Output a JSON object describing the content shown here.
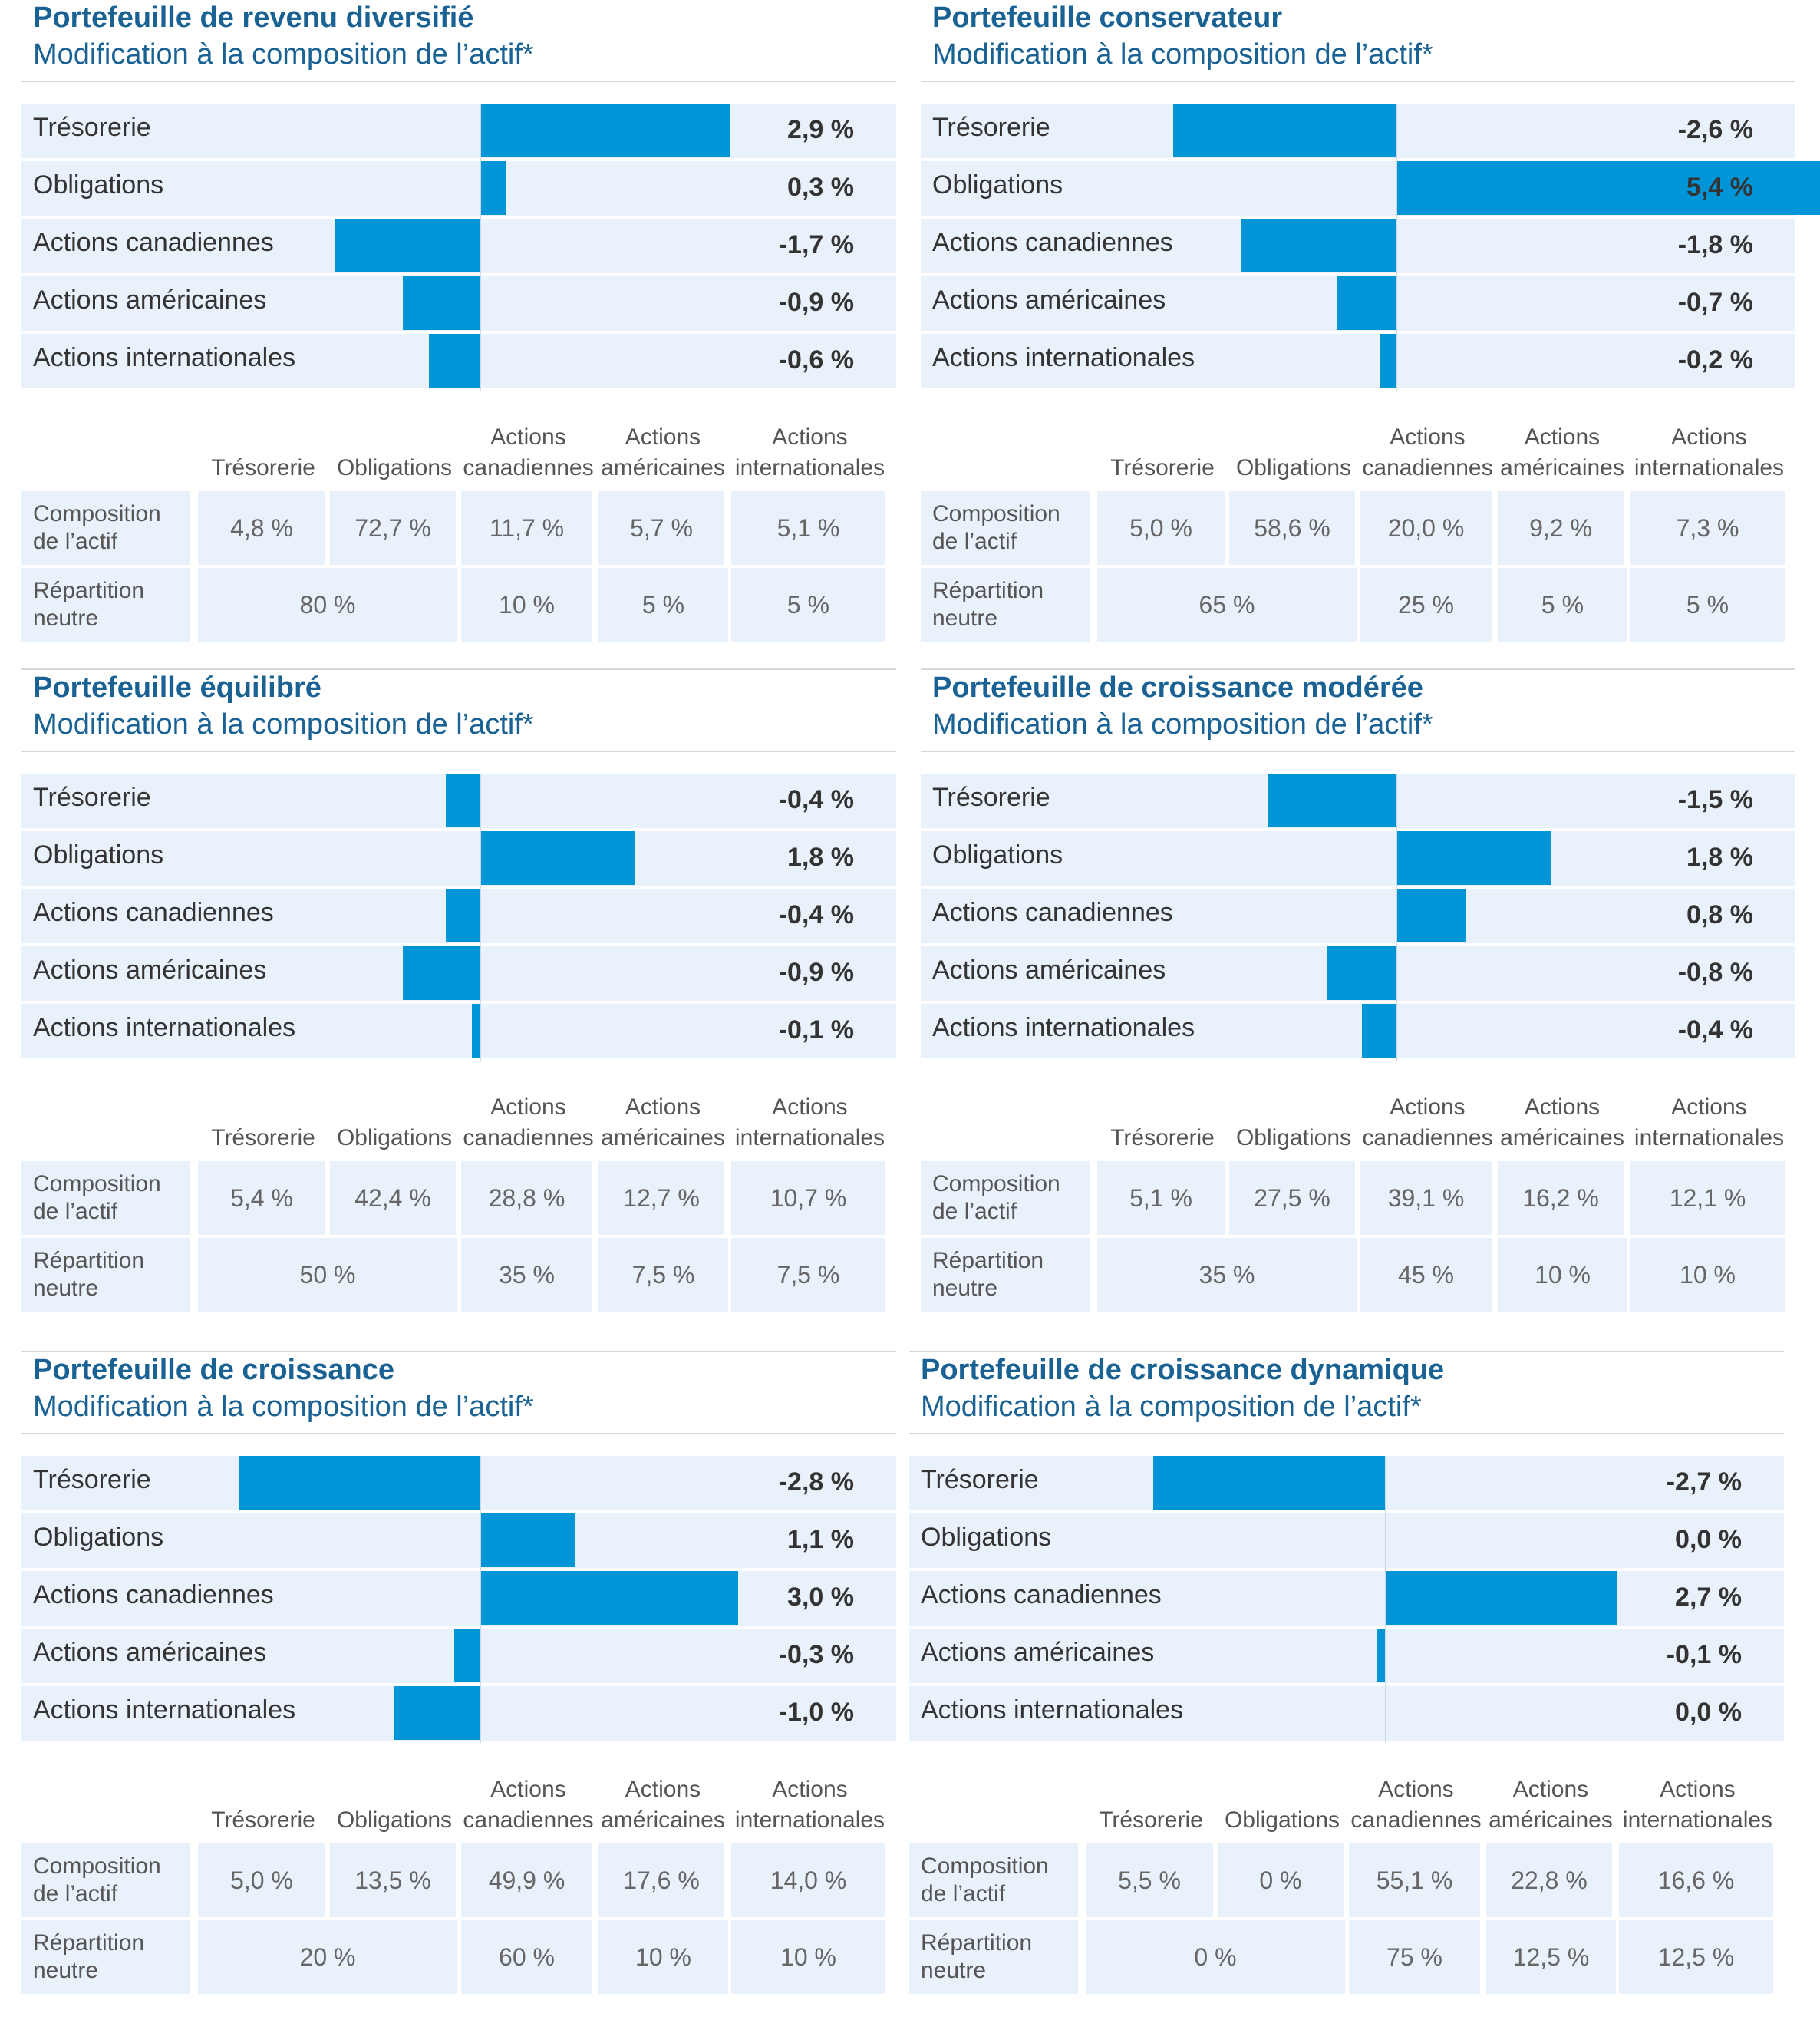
{
  "chart_data": [
    {
      "type": "bar",
      "title": "Portefeuille de revenu diversifié",
      "subtitle": "Modification à la composition de l’actif*",
      "categories": [
        "Trésorerie",
        "Obligations",
        "Actions canadiennes",
        "Actions américaines",
        "Actions internationales"
      ],
      "values": [
        2.9,
        0.3,
        -1.7,
        -0.9,
        -0.6
      ],
      "value_labels": [
        "2,9 %",
        "0,3 %",
        "-1,7 %",
        "-0,9 %",
        "-0,6 %"
      ],
      "table": {
        "columns": [
          "Trésorerie",
          "Obligations",
          "Actions canadiennes",
          "Actions américaines",
          "Actions internationales"
        ],
        "composition_label": "Composition de l’actif",
        "composition": [
          "4,8 %",
          "72,7 %",
          "11,7 %",
          "5,7 %",
          "5,1 %"
        ],
        "neutral_label": "Répartition neutre",
        "neutral": [
          "80 %",
          "10 %",
          "5 %",
          "5 %"
        ]
      }
    },
    {
      "type": "bar",
      "title": "Portefeuille conservateur",
      "subtitle": "Modification à la composition de l’actif*",
      "categories": [
        "Trésorerie",
        "Obligations",
        "Actions canadiennes",
        "Actions américaines",
        "Actions internationales"
      ],
      "values": [
        -2.6,
        5.4,
        -1.8,
        -0.7,
        -0.2
      ],
      "value_labels": [
        "-2,6 %",
        "5,4 %",
        "-1,8 %",
        "-0,7 %",
        "-0,2 %"
      ],
      "table": {
        "columns": [
          "Trésorerie",
          "Obligations",
          "Actions canadiennes",
          "Actions américaines",
          "Actions internationales"
        ],
        "composition_label": "Composition de l’actif",
        "composition": [
          "5,0 %",
          "58,6 %",
          "20,0 %",
          "9,2 %",
          "7,3 %"
        ],
        "neutral_label": "Répartition neutre",
        "neutral": [
          "65 %",
          "25 %",
          "5 %",
          "5 %"
        ]
      }
    },
    {
      "type": "bar",
      "title": "Portefeuille équilibré",
      "subtitle": "Modification à la composition de l’actif*",
      "categories": [
        "Trésorerie",
        "Obligations",
        "Actions canadiennes",
        "Actions américaines",
        "Actions internationales"
      ],
      "values": [
        -0.4,
        1.8,
        -0.4,
        -0.9,
        -0.1
      ],
      "value_labels": [
        "-0,4 %",
        "1,8 %",
        "-0,4 %",
        "-0,9 %",
        "-0,1 %"
      ],
      "table": {
        "columns": [
          "Trésorerie",
          "Obligations",
          "Actions canadiennes",
          "Actions américaines",
          "Actions internationales"
        ],
        "composition_label": "Composition de l’actif",
        "composition": [
          "5,4 %",
          "42,4 %",
          "28,8 %",
          "12,7 %",
          "10,7 %"
        ],
        "neutral_label": "Répartition neutre",
        "neutral": [
          "50 %",
          "35 %",
          "7,5 %",
          "7,5 %"
        ]
      }
    },
    {
      "type": "bar",
      "title": "Portefeuille de croissance modérée",
      "subtitle": "Modification à la composition de l’actif*",
      "categories": [
        "Trésorerie",
        "Obligations",
        "Actions canadiennes",
        "Actions américaines",
        "Actions internationales"
      ],
      "values": [
        -1.5,
        1.8,
        0.8,
        -0.8,
        -0.4
      ],
      "value_labels": [
        "-1,5 %",
        "1,8 %",
        "0,8 %",
        "-0,8 %",
        "-0,4 %"
      ],
      "table": {
        "columns": [
          "Trésorerie",
          "Obligations",
          "Actions canadiennes",
          "Actions américaines",
          "Actions internationales"
        ],
        "composition_label": "Composition de l’actif",
        "composition": [
          "5,1 %",
          "27,5 %",
          "39,1 %",
          "16,2 %",
          "12,1 %"
        ],
        "neutral_label": "Répartition neutre",
        "neutral": [
          "35 %",
          "45 %",
          "10 %",
          "10 %"
        ]
      }
    },
    {
      "type": "bar",
      "title": "Portefeuille de croissance",
      "subtitle": "Modification à la composition de l’actif*",
      "categories": [
        "Trésorerie",
        "Obligations",
        "Actions canadiennes",
        "Actions américaines",
        "Actions internationales"
      ],
      "values": [
        -2.8,
        1.1,
        3.0,
        -0.3,
        -1.0
      ],
      "value_labels": [
        "-2,8 %",
        "1,1 %",
        "3,0 %",
        "-0,3 %",
        "-1,0 %"
      ],
      "table": {
        "columns": [
          "Trésorerie",
          "Obligations",
          "Actions canadiennes",
          "Actions américaines",
          "Actions internationales"
        ],
        "composition_label": "Composition de l’actif",
        "composition": [
          "5,0 %",
          "13,5 %",
          "49,9 %",
          "17,6 %",
          "14,0 %"
        ],
        "neutral_label": "Répartition neutre",
        "neutral": [
          "20 %",
          "60 %",
          "10 %",
          "10 %"
        ]
      }
    },
    {
      "type": "bar",
      "title": "Portefeuille de croissance dynamique",
      "subtitle": "Modification à la composition de l’actif*",
      "categories": [
        "Trésorerie",
        "Obligations",
        "Actions canadiennes",
        "Actions américaines",
        "Actions internationales"
      ],
      "values": [
        -2.7,
        0.0,
        2.7,
        -0.1,
        0.0
      ],
      "value_labels": [
        "-2,7 %",
        "0,0 %",
        "2,7 %",
        "-0,1 %",
        "0,0 %"
      ],
      "table": {
        "columns": [
          "Trésorerie",
          "Obligations",
          "Actions canadiennes",
          "Actions américaines",
          "Actions internationales"
        ],
        "composition_label": "Composition de l’actif",
        "composition": [
          "5,5 %",
          "0 %",
          "55,1 %",
          "22,8 %",
          "16,6 %"
        ],
        "neutral_label": "Répartition neutre",
        "neutral": [
          "0 %",
          "75 %",
          "12,5 %",
          "12,5 %"
        ]
      }
    }
  ],
  "colors": {
    "bar": "#0095d6",
    "row_bg": "#e9f1fa",
    "title": "#1a6294"
  }
}
